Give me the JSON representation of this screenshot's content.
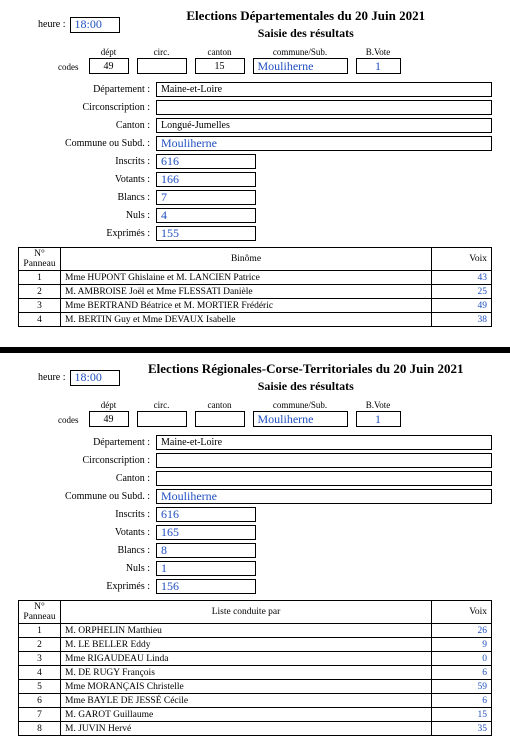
{
  "dept": {
    "title": "Elections Départementales du 20 Juin 2021",
    "subtitle": "Saisie des résultats",
    "heure_label": "heure :",
    "heure": "18:00",
    "codes_label": "codes",
    "headers": {
      "dept": "dépt",
      "circ": "circ.",
      "canton": "canton",
      "commune": "commune/Sub.",
      "bvote": "B.Vote"
    },
    "codes": {
      "dept": "49",
      "circ": "",
      "canton": "15",
      "commune": "Mouliherne",
      "bvote": "1"
    },
    "labels": {
      "departement": "Département :",
      "circ": "Circonscription :",
      "canton": "Canton :",
      "commune": "Commune ou Subd. :",
      "inscrits": "Inscrits :",
      "votants": "Votants :",
      "blancs": "Blancs :",
      "nuls": "Nuls :",
      "exprimes": "Exprimés :"
    },
    "fields": {
      "departement": "Maine-et-Loire",
      "circ": "",
      "canton": "Longué-Jumelles",
      "commune": "Mouliherne",
      "inscrits": "616",
      "votants": "166",
      "blancs": "7",
      "nuls": "4",
      "exprimes": "155"
    },
    "table_headers": {
      "panneau": "N° Panneau",
      "binome": "Binôme",
      "voix": "Voix"
    },
    "rows": [
      {
        "n": "1",
        "nom": "Mme HUPONT Ghislaine et M. LANCIEN Patrice",
        "voix": "43"
      },
      {
        "n": "2",
        "nom": "M. AMBROISE Joël et Mme FLESSATI Danièle",
        "voix": "25"
      },
      {
        "n": "3",
        "nom": "Mme BERTRAND Béatrice et M. MORTIER Frédéric",
        "voix": "49"
      },
      {
        "n": "4",
        "nom": "M. BERTIN Guy et Mme DEVAUX Isabelle",
        "voix": "38"
      }
    ]
  },
  "reg": {
    "title": "Elections Régionales-Corse-Territoriales du 20 Juin 2021",
    "subtitle": "Saisie des résultats",
    "heure_label": "heure :",
    "heure": "18:00",
    "codes_label": "codes",
    "headers": {
      "dept": "dépt",
      "circ": "circ.",
      "canton": "canton",
      "commune": "commune/Sub.",
      "bvote": "B.Vote"
    },
    "codes": {
      "dept": "49",
      "circ": "",
      "canton": "",
      "commune": "Mouliherne",
      "bvote": "1"
    },
    "labels": {
      "departement": "Département :",
      "circ": "Circonscription :",
      "canton": "Canton :",
      "commune": "Commune ou Subd. :",
      "inscrits": "Inscrits :",
      "votants": "Votants :",
      "blancs": "Blancs :",
      "nuls": "Nuls :",
      "exprimes": "Exprimés :"
    },
    "fields": {
      "departement": "Maine-et-Loire",
      "circ": "",
      "canton": "",
      "commune": "Mouliherne",
      "inscrits": "616",
      "votants": "165",
      "blancs": "8",
      "nuls": "1",
      "exprimes": "156"
    },
    "table_headers": {
      "panneau": "N° Panneau",
      "liste": "Liste conduite par",
      "voix": "Voix"
    },
    "rows": [
      {
        "n": "1",
        "nom": "M. ORPHELIN Matthieu",
        "voix": "26"
      },
      {
        "n": "2",
        "nom": "M. LE BELLER Eddy",
        "voix": "9"
      },
      {
        "n": "3",
        "nom": "Mme RIGAUDEAU Linda",
        "voix": "0"
      },
      {
        "n": "4",
        "nom": "M. DE RUGY François",
        "voix": "6"
      },
      {
        "n": "5",
        "nom": "Mme MORANÇAIS Christelle",
        "voix": "59"
      },
      {
        "n": "6",
        "nom": "Mme BAYLE DE JESSÉ Cécile",
        "voix": "6"
      },
      {
        "n": "7",
        "nom": "M. GAROT Guillaume",
        "voix": "15"
      },
      {
        "n": "8",
        "nom": "M. JUVIN Hervé",
        "voix": "35"
      }
    ]
  }
}
